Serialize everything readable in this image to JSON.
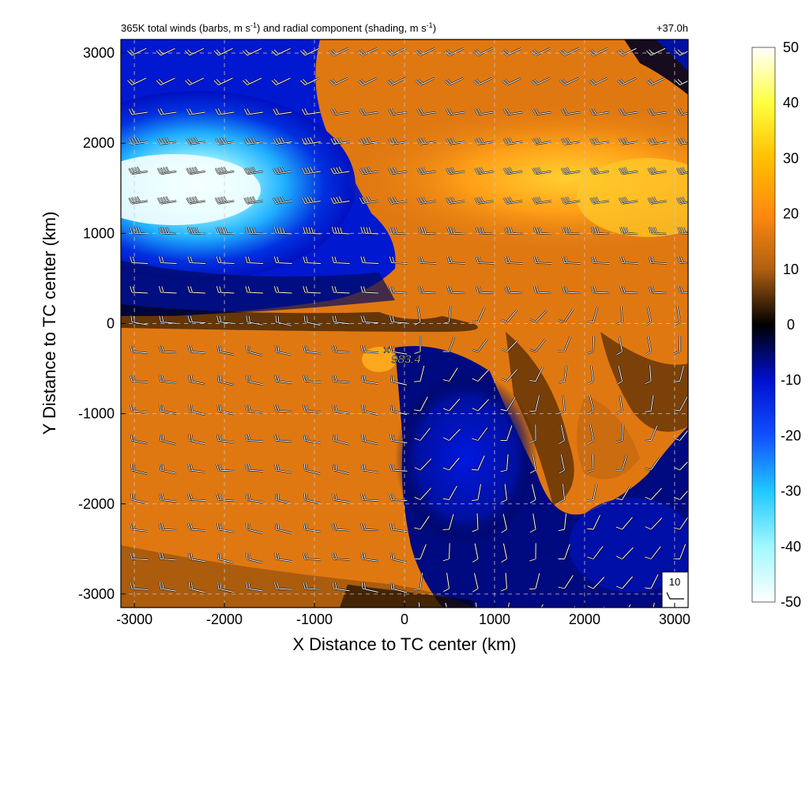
{
  "chart_data": {
    "type": "heatmap",
    "title": "365K total winds (barbs, m s",
    "title_sup1": "-1",
    "title_mid": ") and radial component (shading, m s",
    "title_sup2": "-1",
    "title_end": ")",
    "time_label": "+37.0h",
    "xlabel": "X Distance to TC center (km)",
    "ylabel": "Y Distance to TC center (km)",
    "xlim": [
      -3150,
      3150
    ],
    "ylim": [
      -3150,
      3150
    ],
    "x_ticks": [
      -3000,
      -2000,
      -1000,
      0,
      1000,
      2000,
      3000
    ],
    "y_ticks": [
      -3000,
      -2000,
      -1000,
      0,
      1000,
      2000,
      3000
    ],
    "x_tick_labels": [
      "-3000",
      "-2000",
      "-1000",
      "0",
      "1000",
      "2000",
      "3000"
    ],
    "y_tick_labels": [
      "-3000",
      "-2000",
      "-1000",
      "0",
      "1000",
      "2000",
      "3000"
    ],
    "grid": true,
    "colorbar": {
      "min": -50,
      "max": 50,
      "ticks": [
        50,
        40,
        30,
        20,
        10,
        0,
        -10,
        -20,
        -30,
        -40,
        -50
      ],
      "tick_labels": [
        "50",
        "40",
        "30",
        "20",
        "10",
        "0",
        "-10",
        "-20",
        "-30",
        "-40",
        "-50"
      ]
    },
    "center_marker": {
      "x": -200,
      "y": -300,
      "label": "983.4"
    },
    "reference_barb_label": "10",
    "field_description": [
      {
        "region": "northwest",
        "x": -2200,
        "y": 1500,
        "value": -50
      },
      {
        "region": "north-central",
        "x": -800,
        "y": 2500,
        "value": -12
      },
      {
        "region": "northeast jet",
        "x": 1800,
        "y": 1600,
        "value": 32
      },
      {
        "region": "southwest",
        "x": -2000,
        "y": -1800,
        "value": 15
      },
      {
        "region": "south-central",
        "x": 600,
        "y": -1500,
        "value": -12
      }
    ]
  }
}
